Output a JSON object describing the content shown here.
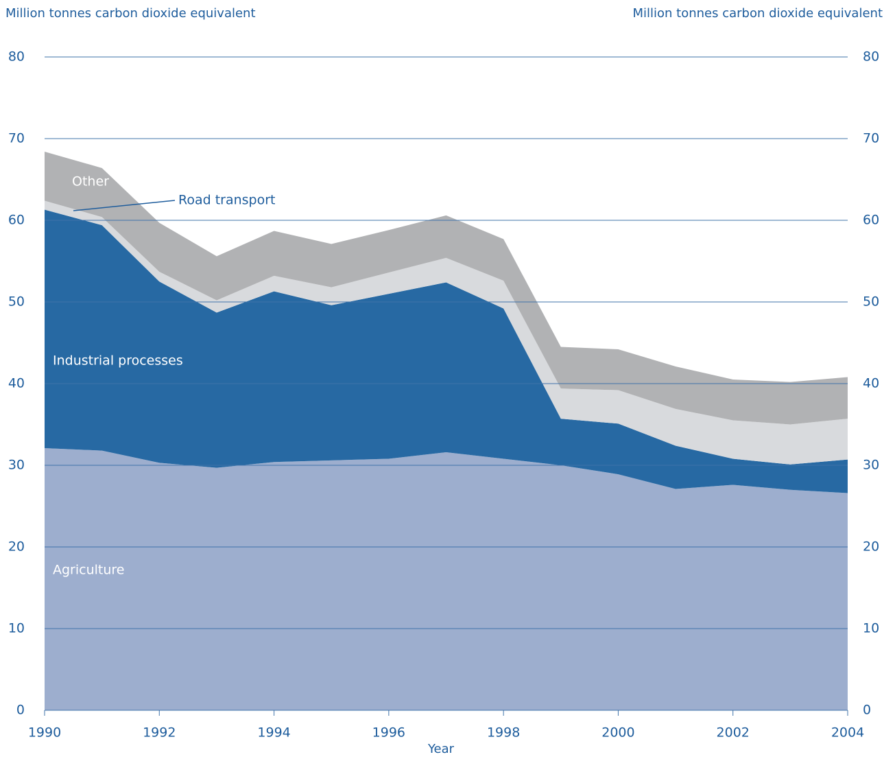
{
  "chart_data": {
    "type": "stacked_area",
    "ylabel": "Million tonnes carbon dioxide equivalent",
    "y2label": "Million tonnes carbon dioxide equivalent",
    "xlabel": "Year",
    "x": [
      1990,
      1991,
      1992,
      1993,
      1994,
      1995,
      1996,
      1997,
      1998,
      1999,
      2000,
      2001,
      2002,
      2003,
      2004
    ],
    "xlim": [
      1990,
      2004
    ],
    "xticks": [
      1990,
      1992,
      1994,
      1996,
      1998,
      2000,
      2002,
      2004
    ],
    "ylim": [
      0,
      80
    ],
    "yticks": [
      0,
      10,
      20,
      30,
      40,
      50,
      60,
      70,
      80
    ],
    "y2lim": [
      0,
      80
    ],
    "y2ticks": [
      0,
      10,
      20,
      30,
      40,
      50,
      60,
      70,
      80
    ],
    "grid": true,
    "series": [
      {
        "name": "Agriculture",
        "color": "#9daece",
        "values": [
          32.1,
          31.8,
          30.3,
          29.7,
          30.4,
          30.6,
          30.8,
          31.6,
          30.8,
          30.0,
          28.9,
          27.1,
          27.6,
          27.0,
          26.6
        ]
      },
      {
        "name": "Industrial processes",
        "color": "#2769a3",
        "values": [
          29.2,
          27.6,
          22.2,
          19.0,
          20.9,
          19.0,
          20.2,
          20.8,
          18.4,
          5.7,
          6.2,
          5.3,
          3.2,
          3.1,
          4.1
        ]
      },
      {
        "name": "Road transport",
        "color": "#d8dadd",
        "values": [
          1.1,
          1.0,
          1.2,
          1.5,
          1.9,
          2.2,
          2.6,
          3.0,
          3.4,
          3.7,
          4.1,
          4.5,
          4.7,
          4.9,
          5.0
        ]
      },
      {
        "name": "Other",
        "color": "#b1b2b4",
        "values": [
          6.0,
          6.0,
          6.0,
          5.4,
          5.5,
          5.3,
          5.2,
          5.2,
          5.1,
          5.1,
          5.0,
          5.2,
          5.0,
          5.2,
          5.1
        ]
      }
    ]
  }
}
